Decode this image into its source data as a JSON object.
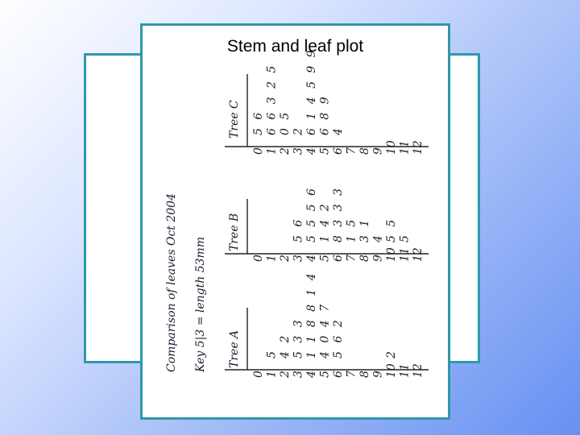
{
  "slide": {
    "title": "Stem and leaf plot"
  },
  "handwritten": {
    "heading": "Comparison of leaves Oct 2004",
    "key": "Key 5|3 = length 53mm",
    "trees": [
      {
        "label": "Tree A",
        "rows": [
          {
            "stem": "0",
            "leaves": ""
          },
          {
            "stem": "1",
            "leaves": "5"
          },
          {
            "stem": "2",
            "leaves": "4 2"
          },
          {
            "stem": "3",
            "leaves": "5 3 3"
          },
          {
            "stem": "4",
            "leaves": "1 1 8 8 1 4"
          },
          {
            "stem": "5",
            "leaves": "4 0 4 7"
          },
          {
            "stem": "6",
            "leaves": "5 6 2"
          },
          {
            "stem": "7",
            "leaves": ""
          },
          {
            "stem": "8",
            "leaves": ""
          },
          {
            "stem": "9",
            "leaves": ""
          },
          {
            "stem": "10",
            "leaves": "2"
          },
          {
            "stem": "11",
            "leaves": ""
          },
          {
            "stem": "12",
            "leaves": ""
          }
        ]
      },
      {
        "label": "Tree B",
        "rows": [
          {
            "stem": "0",
            "leaves": ""
          },
          {
            "stem": "1",
            "leaves": ""
          },
          {
            "stem": "2",
            "leaves": ""
          },
          {
            "stem": "3",
            "leaves": "5 6"
          },
          {
            "stem": "4",
            "leaves": "5 5 5 6"
          },
          {
            "stem": "5",
            "leaves": "1 4 2"
          },
          {
            "stem": "6",
            "leaves": "8 3 3 3"
          },
          {
            "stem": "7",
            "leaves": "1 5"
          },
          {
            "stem": "8",
            "leaves": "3 1"
          },
          {
            "stem": "9",
            "leaves": "4"
          },
          {
            "stem": "10",
            "leaves": "5 5"
          },
          {
            "stem": "11",
            "leaves": "5"
          },
          {
            "stem": "12",
            "leaves": ""
          }
        ]
      },
      {
        "label": "Tree C",
        "rows": [
          {
            "stem": "0",
            "leaves": "5 6"
          },
          {
            "stem": "1",
            "leaves": "6 6 3 2 5"
          },
          {
            "stem": "2",
            "leaves": "0 5"
          },
          {
            "stem": "3",
            "leaves": "2"
          },
          {
            "stem": "4",
            "leaves": "6 1 4 5 9 9"
          },
          {
            "stem": "5",
            "leaves": "6 8 9"
          },
          {
            "stem": "6",
            "leaves": "4"
          },
          {
            "stem": "7",
            "leaves": ""
          },
          {
            "stem": "8",
            "leaves": ""
          },
          {
            "stem": "9",
            "leaves": ""
          },
          {
            "stem": "10",
            "leaves": ""
          },
          {
            "stem": "11",
            "leaves": ""
          },
          {
            "stem": "12",
            "leaves": ""
          }
        ]
      }
    ]
  }
}
